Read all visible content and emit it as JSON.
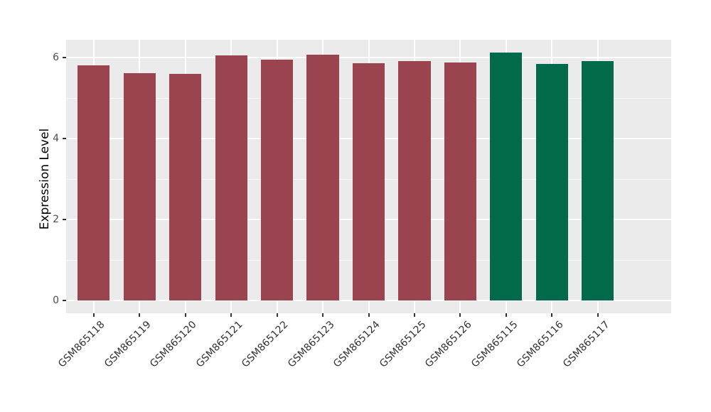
{
  "chart_data": {
    "type": "bar",
    "title": "",
    "xlabel": "",
    "ylabel": "Expression Level",
    "categories": [
      "GSM865118",
      "GSM865119",
      "GSM865120",
      "GSM865121",
      "GSM865122",
      "GSM865123",
      "GSM865124",
      "GSM865125",
      "GSM865126",
      "GSM865115",
      "GSM865116",
      "GSM865117"
    ],
    "values": [
      5.8,
      5.62,
      5.59,
      6.05,
      5.95,
      6.07,
      5.86,
      5.92,
      5.87,
      6.12,
      5.85,
      5.91
    ],
    "bar_colors": [
      "#9A4450",
      "#9A4450",
      "#9A4450",
      "#9A4450",
      "#9A4450",
      "#9A4450",
      "#9A4450",
      "#9A4450",
      "#9A4450",
      "#016A4B",
      "#016A4B",
      "#016A4B"
    ],
    "group_colors": {
      "maroon_group": "#9A4450",
      "green_group": "#016A4B"
    },
    "yticks": [
      0,
      2,
      4,
      6
    ],
    "minor_yticks": [
      1,
      3,
      5
    ],
    "ylim": [
      0,
      6.43
    ],
    "grid": "on",
    "legend": "none",
    "panel_background": "#EBEBEB",
    "gridline_color": "#FFFFFF",
    "tick_color": "#333333",
    "tick_label_color": "#4d4d4d",
    "x_tick_label_rotation_deg": -45
  }
}
